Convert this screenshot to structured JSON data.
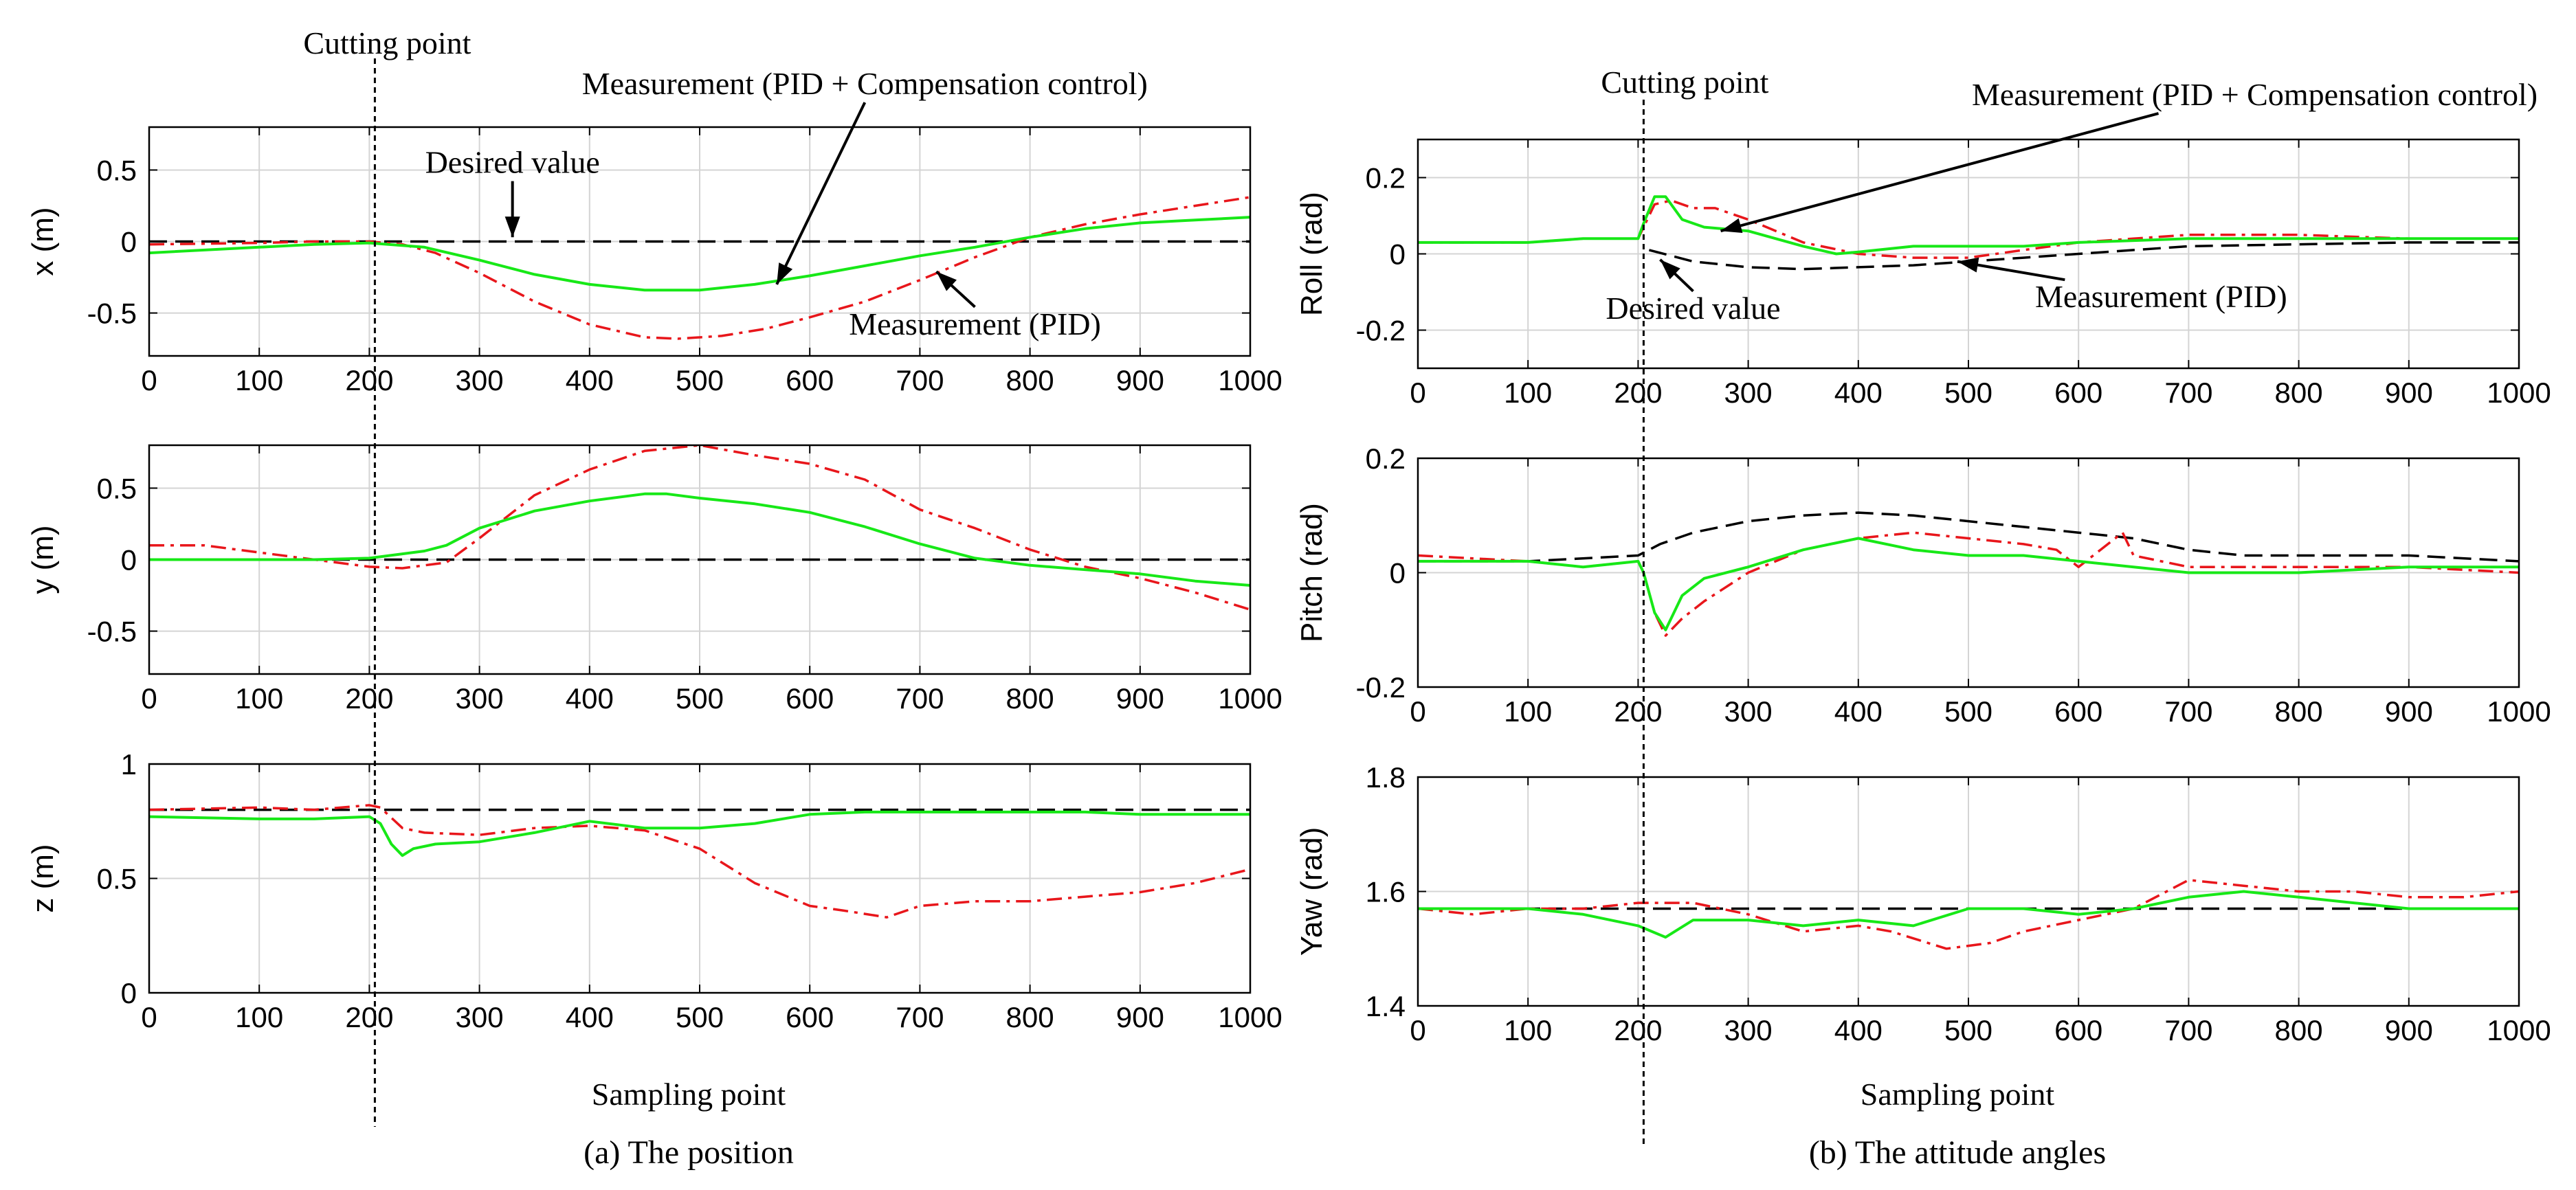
{
  "colors": {
    "desired": "#000000",
    "pid": "#e8161b",
    "pid_comp": "#17e817",
    "grid": "#d4d4d4",
    "axis": "#000000"
  },
  "shared": {
    "xlabel": "Sampling point",
    "cutting_point_x": 205,
    "cutting_label": "Cutting point",
    "series_names": [
      "Desired value",
      "Measurement (PID)",
      "Measurement (PID + Compensation control)"
    ]
  },
  "captions": {
    "left": "(a) The position",
    "right": "(b) The attitude angles"
  },
  "chart_data": [
    {
      "id": "x",
      "type": "line",
      "ylabel": "x (m)",
      "xlim": [
        0,
        1000
      ],
      "ylim": [
        -0.8,
        0.8
      ],
      "xticks": [
        "0",
        "100",
        "200",
        "300",
        "400",
        "500",
        "600",
        "700",
        "800",
        "900",
        "1000"
      ],
      "yticks": [
        "-0.5",
        "0",
        "0.5"
      ],
      "ytick_values": [
        -0.5,
        0,
        0.5
      ],
      "series": [
        {
          "name": "Desired value",
          "x": [
            0,
            1000
          ],
          "y": [
            0,
            0
          ]
        },
        {
          "name": "Measurement (PID)",
          "x": [
            0,
            100,
            150,
            200,
            230,
            260,
            300,
            350,
            400,
            450,
            480,
            520,
            560,
            600,
            650,
            700,
            750,
            800,
            850,
            900,
            950,
            1000
          ],
          "y": [
            -0.02,
            -0.01,
            0,
            0,
            -0.02,
            -0.08,
            -0.22,
            -0.42,
            -0.58,
            -0.67,
            -0.68,
            -0.66,
            -0.61,
            -0.53,
            -0.42,
            -0.27,
            -0.11,
            0.03,
            0.12,
            0.19,
            0.25,
            0.31
          ]
        },
        {
          "name": "Measurement (PID + Compensation control)",
          "x": [
            0,
            100,
            150,
            200,
            250,
            300,
            350,
            400,
            450,
            500,
            550,
            600,
            650,
            700,
            750,
            800,
            850,
            900,
            950,
            1000
          ],
          "y": [
            -0.08,
            -0.04,
            -0.02,
            -0.01,
            -0.04,
            -0.13,
            -0.23,
            -0.3,
            -0.34,
            -0.34,
            -0.3,
            -0.24,
            -0.17,
            -0.1,
            -0.04,
            0.03,
            0.09,
            0.13,
            0.15,
            0.17
          ]
        }
      ],
      "annotations": [
        {
          "text": "Desired value",
          "x": 330,
          "y": 0.48,
          "arrow_to": [
            330,
            0.03
          ]
        },
        {
          "text": "Measurement (PID + Compensation control)",
          "x": 650,
          "y": 1.03,
          "arrow_to": [
            570,
            -0.3
          ]
        },
        {
          "text": "Measurement (PID)",
          "x": 750,
          "y": -0.65,
          "arrow_to": [
            715,
            -0.21
          ]
        }
      ]
    },
    {
      "id": "y",
      "type": "line",
      "ylabel": "y (m)",
      "xlim": [
        0,
        1000
      ],
      "ylim": [
        -0.8,
        0.8
      ],
      "xticks": [
        "0",
        "100",
        "200",
        "300",
        "400",
        "500",
        "600",
        "700",
        "800",
        "900",
        "1000"
      ],
      "yticks": [
        "-0.5",
        "0",
        "0.5"
      ],
      "ytick_values": [
        -0.5,
        0,
        0.5
      ],
      "series": [
        {
          "name": "Desired value",
          "x": [
            0,
            1000
          ],
          "y": [
            0,
            0
          ]
        },
        {
          "name": "Measurement (PID)",
          "x": [
            0,
            50,
            100,
            150,
            200,
            230,
            270,
            300,
            350,
            400,
            450,
            500,
            550,
            600,
            650,
            700,
            750,
            800,
            850,
            900,
            950,
            1000
          ],
          "y": [
            0.1,
            0.1,
            0.05,
            0,
            -0.05,
            -0.06,
            -0.02,
            0.15,
            0.45,
            0.63,
            0.76,
            0.8,
            0.73,
            0.67,
            0.56,
            0.35,
            0.22,
            0.07,
            -0.05,
            -0.13,
            -0.23,
            -0.35
          ]
        },
        {
          "name": "Measurement (PID + Compensation control)",
          "x": [
            0,
            100,
            150,
            200,
            250,
            270,
            300,
            350,
            400,
            450,
            470,
            500,
            550,
            600,
            650,
            700,
            750,
            800,
            850,
            900,
            950,
            1000
          ],
          "y": [
            0,
            0,
            0,
            0.01,
            0.06,
            0.1,
            0.22,
            0.34,
            0.41,
            0.46,
            0.46,
            0.43,
            0.39,
            0.33,
            0.23,
            0.11,
            0.01,
            -0.04,
            -0.07,
            -0.1,
            -0.15,
            -0.18
          ]
        }
      ],
      "annotations": []
    },
    {
      "id": "z",
      "type": "line",
      "ylabel": "z (m)",
      "xlim": [
        0,
        1000
      ],
      "ylim": [
        0,
        1
      ],
      "xticks": [
        "0",
        "100",
        "200",
        "300",
        "400",
        "500",
        "600",
        "700",
        "800",
        "900",
        "1000"
      ],
      "yticks": [
        "0",
        "0.5",
        "1"
      ],
      "ytick_values": [
        0,
        0.5,
        1
      ],
      "series": [
        {
          "name": "Desired value",
          "x": [
            0,
            1000
          ],
          "y": [
            0.8,
            0.8
          ]
        },
        {
          "name": "Measurement (PID)",
          "x": [
            0,
            100,
            150,
            200,
            210,
            230,
            250,
            300,
            350,
            400,
            450,
            500,
            550,
            600,
            630,
            670,
            700,
            750,
            800,
            850,
            900,
            950,
            1000
          ],
          "y": [
            0.8,
            0.81,
            0.8,
            0.82,
            0.81,
            0.72,
            0.7,
            0.69,
            0.72,
            0.73,
            0.71,
            0.63,
            0.48,
            0.38,
            0.36,
            0.33,
            0.38,
            0.4,
            0.4,
            0.42,
            0.44,
            0.48,
            0.54
          ]
        },
        {
          "name": "Measurement (PID + Compensation control)",
          "x": [
            0,
            100,
            150,
            200,
            210,
            220,
            230,
            240,
            260,
            300,
            350,
            400,
            450,
            500,
            550,
            600,
            650,
            700,
            750,
            800,
            850,
            900,
            950,
            1000
          ],
          "y": [
            0.77,
            0.76,
            0.76,
            0.77,
            0.74,
            0.65,
            0.6,
            0.63,
            0.65,
            0.66,
            0.7,
            0.75,
            0.72,
            0.72,
            0.74,
            0.78,
            0.79,
            0.79,
            0.79,
            0.79,
            0.79,
            0.78,
            0.78,
            0.78
          ]
        }
      ],
      "annotations": []
    },
    {
      "id": "roll",
      "type": "line",
      "ylabel": "Roll (rad)",
      "xlim": [
        0,
        1000
      ],
      "ylim": [
        -0.3,
        0.3
      ],
      "xticks": [
        "0",
        "100",
        "200",
        "300",
        "400",
        "500",
        "600",
        "700",
        "800",
        "900",
        "1000"
      ],
      "yticks": [
        "-0.2",
        "0",
        "0.2"
      ],
      "ytick_values": [
        -0.2,
        0,
        0.2
      ],
      "series": [
        {
          "name": "Desired value",
          "x": [
            210,
            250,
            300,
            350,
            400,
            450,
            500,
            550,
            600,
            650,
            700,
            800,
            900,
            1000
          ],
          "y": [
            0.01,
            -0.02,
            -0.035,
            -0.04,
            -0.035,
            -0.03,
            -0.02,
            -0.01,
            0,
            0.01,
            0.02,
            0.025,
            0.03,
            0.03
          ]
        },
        {
          "name": "Measurement (PID)",
          "x": [
            0,
            100,
            150,
            200,
            205,
            215,
            230,
            250,
            270,
            300,
            350,
            400,
            450,
            500,
            550,
            600,
            650,
            700,
            800,
            900,
            1000
          ],
          "y": [
            0.03,
            0.03,
            0.04,
            0.04,
            0.07,
            0.13,
            0.14,
            0.12,
            0.12,
            0.09,
            0.03,
            0,
            -0.01,
            -0.01,
            0.01,
            0.03,
            0.04,
            0.05,
            0.05,
            0.04,
            0.04
          ]
        },
        {
          "name": "Measurement (PID + Compensation control)",
          "x": [
            0,
            100,
            150,
            200,
            205,
            215,
            225,
            240,
            260,
            300,
            350,
            380,
            400,
            450,
            500,
            550,
            600,
            700,
            800,
            900,
            1000
          ],
          "y": [
            0.03,
            0.03,
            0.04,
            0.04,
            0.08,
            0.15,
            0.15,
            0.09,
            0.07,
            0.06,
            0.02,
            0,
            0.005,
            0.02,
            0.02,
            0.02,
            0.03,
            0.04,
            0.04,
            0.04,
            0.04
          ]
        }
      ],
      "annotations": [
        {
          "text": "Measurement (PID + Compensation control)",
          "x": 760,
          "y": 0.39,
          "arrow_to": [
            275,
            0.06
          ]
        },
        {
          "text": "Desired value",
          "x": 250,
          "y": -0.17,
          "arrow_to": [
            220,
            -0.015
          ]
        },
        {
          "text": "Measurement (PID)",
          "x": 675,
          "y": -0.14,
          "arrow_to": [
            490,
            -0.02
          ]
        }
      ]
    },
    {
      "id": "pitch",
      "type": "line",
      "ylabel": "Pitch (rad)",
      "xlim": [
        0,
        1000
      ],
      "ylim": [
        -0.2,
        0.2
      ],
      "xticks": [
        "0",
        "100",
        "200",
        "300",
        "400",
        "500",
        "600",
        "700",
        "800",
        "900",
        "1000"
      ],
      "yticks": [
        "-0.2",
        "0",
        "0.2"
      ],
      "ytick_values": [
        -0.2,
        0,
        0.2
      ],
      "series": [
        {
          "name": "Desired value",
          "x": [
            0,
            100,
            200,
            220,
            250,
            300,
            350,
            400,
            450,
            500,
            550,
            600,
            650,
            700,
            750,
            800,
            900,
            1000
          ],
          "y": [
            0.02,
            0.02,
            0.03,
            0.05,
            0.07,
            0.09,
            0.1,
            0.105,
            0.1,
            0.09,
            0.08,
            0.07,
            0.06,
            0.04,
            0.03,
            0.03,
            0.03,
            0.02
          ]
        },
        {
          "name": "Measurement (PID)",
          "x": [
            0,
            100,
            150,
            200,
            205,
            215,
            225,
            240,
            260,
            300,
            350,
            400,
            450,
            500,
            550,
            580,
            600,
            620,
            640,
            650,
            700,
            800,
            900,
            1000
          ],
          "y": [
            0.03,
            0.02,
            0.01,
            0.02,
            0,
            -0.07,
            -0.11,
            -0.08,
            -0.05,
            0,
            0.04,
            0.06,
            0.07,
            0.06,
            0.05,
            0.04,
            0.01,
            0.04,
            0.07,
            0.03,
            0.01,
            0.01,
            0.01,
            0
          ]
        },
        {
          "name": "Measurement (PID + Compensation control)",
          "x": [
            0,
            100,
            150,
            200,
            205,
            215,
            225,
            240,
            260,
            300,
            350,
            400,
            450,
            500,
            550,
            600,
            650,
            700,
            800,
            900,
            1000
          ],
          "y": [
            0.02,
            0.02,
            0.01,
            0.02,
            0,
            -0.07,
            -0.1,
            -0.04,
            -0.01,
            0.01,
            0.04,
            0.06,
            0.04,
            0.03,
            0.03,
            0.02,
            0.01,
            0,
            0,
            0.01,
            0.01
          ]
        }
      ],
      "annotations": []
    },
    {
      "id": "yaw",
      "type": "line",
      "ylabel": "Yaw (rad)",
      "xlim": [
        0,
        1000
      ],
      "ylim": [
        1.4,
        1.8
      ],
      "xticks": [
        "0",
        "100",
        "200",
        "300",
        "400",
        "500",
        "600",
        "700",
        "800",
        "900",
        "1000"
      ],
      "yticks": [
        "1.4",
        "1.6",
        "1.8"
      ],
      "ytick_values": [
        1.4,
        1.6,
        1.8
      ],
      "series": [
        {
          "name": "Desired value",
          "x": [
            0,
            1000
          ],
          "y": [
            1.57,
            1.57
          ]
        },
        {
          "name": "Measurement (PID)",
          "x": [
            0,
            50,
            100,
            150,
            200,
            250,
            300,
            350,
            400,
            430,
            480,
            520,
            550,
            600,
            650,
            700,
            750,
            800,
            850,
            900,
            950,
            1000
          ],
          "y": [
            1.57,
            1.56,
            1.57,
            1.57,
            1.58,
            1.58,
            1.56,
            1.53,
            1.54,
            1.53,
            1.5,
            1.51,
            1.53,
            1.55,
            1.57,
            1.62,
            1.61,
            1.6,
            1.6,
            1.59,
            1.59,
            1.6
          ]
        },
        {
          "name": "Measurement (PID + Compensation control)",
          "x": [
            0,
            100,
            150,
            200,
            225,
            250,
            300,
            350,
            400,
            450,
            500,
            550,
            600,
            650,
            700,
            750,
            800,
            850,
            900,
            950,
            1000
          ],
          "y": [
            1.57,
            1.57,
            1.56,
            1.54,
            1.52,
            1.55,
            1.55,
            1.54,
            1.55,
            1.54,
            1.57,
            1.57,
            1.56,
            1.57,
            1.59,
            1.6,
            1.59,
            1.58,
            1.57,
            1.57,
            1.57
          ]
        }
      ],
      "annotations": []
    }
  ]
}
